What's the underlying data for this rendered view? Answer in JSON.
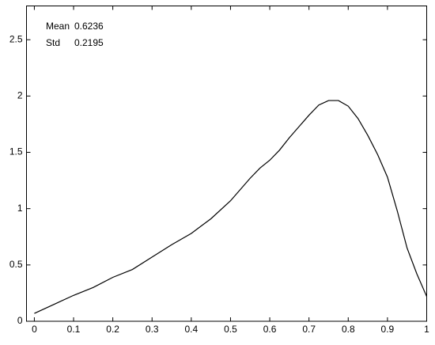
{
  "chart_data": {
    "type": "line",
    "x": [
      0,
      0.05,
      0.1,
      0.15,
      0.2,
      0.25,
      0.3,
      0.35,
      0.4,
      0.45,
      0.5,
      0.55,
      0.575,
      0.6,
      0.625,
      0.65,
      0.7,
      0.725,
      0.75,
      0.775,
      0.8,
      0.825,
      0.85,
      0.875,
      0.9,
      0.925,
      0.95,
      0.975,
      1
    ],
    "series": [
      {
        "color": "#000000",
        "values": [
          0.07,
          0.15,
          0.23,
          0.3,
          0.39,
          0.46,
          0.57,
          0.68,
          0.78,
          0.91,
          1.07,
          1.27,
          1.36,
          1.43,
          1.52,
          1.63,
          1.83,
          1.92,
          1.96,
          1.96,
          1.91,
          1.8,
          1.65,
          1.48,
          1.28,
          0.98,
          0.65,
          0.42,
          0.22
        ]
      }
    ],
    "xlim": [
      -0.02,
      1
    ],
    "xticks": [
      0,
      0.1,
      0.2,
      0.3,
      0.4,
      0.5,
      0.6,
      0.7,
      0.8,
      0.9,
      1
    ],
    "ylim": [
      0,
      2.8
    ],
    "yticks": [
      0,
      0.5,
      1,
      1.5,
      2,
      2.5
    ],
    "annotations": [
      {
        "label": "Mean",
        "value": 0.6236
      },
      {
        "label": "Std",
        "value": 0.2195
      }
    ]
  }
}
